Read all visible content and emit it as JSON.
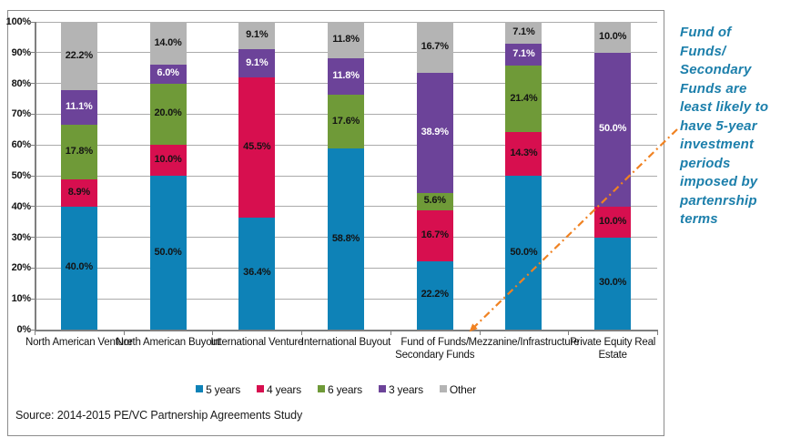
{
  "chart_data": {
    "type": "bar",
    "stacked": true,
    "title": "",
    "xlabel": "",
    "ylabel": "",
    "categories": [
      "North American Venture",
      "North American Buyout",
      "International Venture",
      "International Buyout",
      "Fund of Funds/\nSecondary Funds",
      "Mezzanine/Infrastructure",
      "Private Equity Real\nEstate"
    ],
    "series": [
      {
        "name": "5 years",
        "color": "#0E82B7",
        "label_color": "#131313",
        "values": [
          40.0,
          50.0,
          36.4,
          58.8,
          22.2,
          50.0,
          30.0
        ]
      },
      {
        "name": "4 years",
        "color": "#D70F4F",
        "label_color": "#131313",
        "values": [
          8.9,
          10.0,
          45.5,
          0,
          16.7,
          14.3,
          10.0
        ]
      },
      {
        "name": "6 years",
        "color": "#6F9A38",
        "label_color": "#131313",
        "values": [
          17.8,
          20.0,
          0,
          17.6,
          5.6,
          21.4,
          0
        ]
      },
      {
        "name": "3 years",
        "color": "#6C4399",
        "label_color": "#FFFFFF",
        "values": [
          11.1,
          6.0,
          9.1,
          11.8,
          38.9,
          7.1,
          50.0
        ]
      },
      {
        "name": "Other",
        "color": "#B4B4B4",
        "label_color": "#131313",
        "values": [
          22.2,
          14.0,
          9.1,
          11.8,
          16.7,
          7.1,
          10.0
        ]
      }
    ],
    "y_axis": {
      "min": 0,
      "max": 100,
      "step": 10,
      "tick_suffix": "%"
    },
    "value_suffix": "%",
    "grid": true,
    "legend_position": "bottom"
  },
  "annotation": {
    "text": "Fund of\nFunds/\nSecondary\nFunds are\nleast likely to\nhave 5-year\ninvestment\nperiods\nimposed by\npartenrship\nterms",
    "color": "#1C7FAB",
    "arrow_color": "#F08222"
  },
  "source": "Source: 2014-2015 PE/VC Partnership Agreements Study"
}
